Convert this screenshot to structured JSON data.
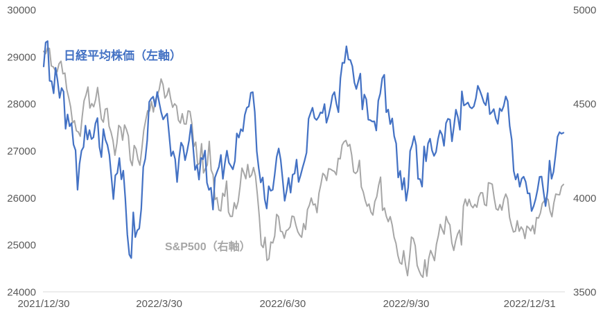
{
  "chart_data": {
    "type": "line",
    "title": "",
    "legend": [
      {
        "label": "日経平均株価（左軸）",
        "color": "#4472C4"
      },
      {
        "label": "S&P500（右軸）",
        "color": "#A6A6A6"
      }
    ],
    "tick_label_color": "#595959",
    "axis_line_color": "#D9D9D9",
    "grid": "off",
    "left_axis": {
      "min": 24000,
      "max": 30000,
      "ticks": [
        30000,
        29000,
        28000,
        27000,
        26000,
        25000,
        24000
      ]
    },
    "right_axis": {
      "min": 3500,
      "max": 5000,
      "ticks": [
        5000,
        4500,
        4000,
        3500
      ]
    },
    "x_axis": {
      "ticks": [
        {
          "label": "2021/12/30",
          "index": 0
        },
        {
          "label": "2022/3/30",
          "index": 58
        },
        {
          "label": "2022/6/30",
          "index": 120
        },
        {
          "label": "2022/9/30",
          "index": 182
        },
        {
          "label": "2022/12/31",
          "index": 244
        }
      ]
    },
    "series": [
      {
        "name": "nikkei-225",
        "label": "日経平均株価（左軸）",
        "axis": "left",
        "color": "#4472C4",
        "width": 2.25,
        "values": [
          28792,
          29302,
          29332,
          28488,
          28479,
          28222,
          28766,
          28489,
          28124,
          28334,
          28257,
          27467,
          27773,
          27522,
          27588,
          27131,
          27011,
          26170,
          26717,
          27002,
          27078,
          27534,
          27241,
          27440,
          27249,
          27285,
          27580,
          27696,
          27080,
          26865,
          27460,
          27233,
          27122,
          26911,
          26450,
          25971,
          26477,
          26527,
          26845,
          26393,
          26577,
          25985,
          25221,
          24791,
          24718,
          25690,
          25163,
          25308,
          25346,
          25762,
          26653,
          26827,
          27224,
          28040,
          28110,
          28150,
          27944,
          28252,
          28027,
          27821,
          27666,
          27736,
          27788,
          27350,
          26889,
          26986,
          26822,
          26335,
          26843,
          27172,
          27093,
          26800,
          26985,
          27218,
          27553,
          27105,
          26591,
          26700,
          26387,
          26848,
          26819,
          27004,
          26319,
          26167,
          26214,
          25749,
          26428,
          26547,
          26660,
          26911,
          26403,
          26739,
          27002,
          26748,
          26678,
          26605,
          26782,
          27369,
          27280,
          27458,
          27414,
          27762,
          27916,
          27944,
          28234,
          28247,
          27824,
          26987,
          26630,
          26326,
          26431,
          25963,
          25771,
          26246,
          26150,
          26171,
          26492,
          26871,
          27049,
          26805,
          26393,
          25936,
          26154,
          26423,
          26108,
          26491,
          26517,
          26812,
          26337,
          26479,
          26643,
          26788,
          26962,
          27680,
          27803,
          27915,
          27699,
          27655,
          27716,
          27815,
          27802,
          27993,
          27595,
          27742,
          27932,
          28176,
          28249,
          28000,
          27819,
          28547,
          28872,
          28869,
          29223,
          28942,
          28930,
          28795,
          28453,
          28313,
          28479,
          28641,
          27879,
          28196,
          28092,
          27661,
          27651,
          27620,
          27627,
          27430,
          28065,
          28215,
          28542,
          28615,
          27819,
          27876,
          27568,
          27688,
          27313,
          27154,
          26432,
          26572,
          26174,
          26422,
          25937,
          26216,
          26992,
          27121,
          27311,
          27116,
          26401,
          26397,
          26237,
          27091,
          26776,
          27156,
          27257,
          27007,
          26891,
          26975,
          27250,
          27432,
          27345,
          27105,
          27587,
          27679,
          27663,
          27200,
          27528,
          27872,
          27716,
          27446,
          28264,
          27963,
          27990,
          28028,
          27931,
          27900,
          27945,
          28116,
          28383,
          28283,
          28163,
          28028,
          27969,
          28226,
          27778,
          27820,
          27886,
          27686,
          27574,
          27901,
          27842,
          27955,
          28156,
          28052,
          27527,
          27238,
          26568,
          26388,
          26508,
          26235,
          26406,
          26448,
          26341,
          26094,
          26095,
          25717,
          25821,
          25974,
          26176,
          26446,
          26450,
          26120,
          25822,
          26139,
          26791,
          26405,
          26554,
          26906,
          27299,
          27395,
          27363,
          27383
        ]
      },
      {
        "name": "sp500",
        "label": "S&P500（右軸）",
        "axis": "right",
        "color": "#A6A6A6",
        "width": 2,
        "values": [
          4779,
          4766,
          4797,
          4794,
          4701,
          4696,
          4677,
          4670,
          4713,
          4726,
          4659,
          4663,
          4577,
          4533,
          4483,
          4398,
          4410,
          4356,
          4350,
          4327,
          4432,
          4516,
          4547,
          4589,
          4477,
          4501,
          4484,
          4522,
          4587,
          4504,
          4419,
          4402,
          4471,
          4475,
          4380,
          4349,
          4305,
          4226,
          4289,
          4385,
          4374,
          4306,
          4387,
          4363,
          4329,
          4201,
          4171,
          4278,
          4260,
          4204,
          4173,
          4262,
          4358,
          4412,
          4463,
          4461,
          4512,
          4456,
          4520,
          4543,
          4576,
          4632,
          4602,
          4530,
          4546,
          4583,
          4525,
          4481,
          4500,
          4488,
          4413,
          4397,
          4447,
          4393,
          4392,
          4462,
          4459,
          4394,
          4272,
          4296,
          4175,
          4184,
          4288,
          4132,
          4155,
          4175,
          4300,
          4147,
          4123,
          3991,
          4001,
          3935,
          3930,
          4024,
          4008,
          4089,
          3924,
          3901,
          3901,
          3974,
          3941,
          3979,
          4058,
          4158,
          4132,
          4101,
          4177,
          4109,
          4121,
          4161,
          4116,
          4018,
          3901,
          3750,
          3735,
          3790,
          3667,
          3675,
          3765,
          3760,
          3796,
          3912,
          3900,
          3822,
          3819,
          3785,
          3825,
          3831,
          3845,
          3903,
          3899,
          3854,
          3819,
          3802,
          3790,
          3863,
          3831,
          3937,
          3960,
          3999,
          3962,
          3967,
          3921,
          4024,
          4072,
          4130,
          4119,
          4091,
          4155,
          4152,
          4145,
          4140,
          4122,
          4210,
          4207,
          4280,
          4297,
          4305,
          4274,
          4284,
          4228,
          4138,
          4129,
          4141,
          4199,
          4058,
          4031,
          3986,
          3955,
          3967,
          3924,
          3908,
          3980,
          4006,
          4067,
          4110,
          3933,
          3946,
          3901,
          3873,
          3900,
          3856,
          3790,
          3758,
          3693,
          3655,
          3647,
          3719,
          3640,
          3586,
          3678,
          3791,
          3783,
          3745,
          3640,
          3612,
          3589,
          3577,
          3670,
          3583,
          3678,
          3720,
          3695,
          3666,
          3753,
          3797,
          3859,
          3831,
          3807,
          3901,
          3872,
          3856,
          3760,
          3720,
          3771,
          3807,
          3828,
          3749,
          3956,
          3993,
          3957,
          3992,
          3959,
          3947,
          3965,
          3950,
          4004,
          4027,
          4026,
          3964,
          3958,
          4080,
          4077,
          4072,
          3999,
          3941,
          3934,
          3964,
          3934,
          3991,
          4020,
          3995,
          3896,
          3852,
          3818,
          3822,
          3878,
          3822,
          3845,
          3829,
          3783,
          3849,
          3840,
          3824,
          3853,
          3808,
          3895,
          3892,
          3919,
          3970,
          3983,
          3999,
          3991,
          3929,
          3899,
          3973,
          4020,
          4017,
          4016,
          4060,
          4071
        ]
      }
    ]
  }
}
